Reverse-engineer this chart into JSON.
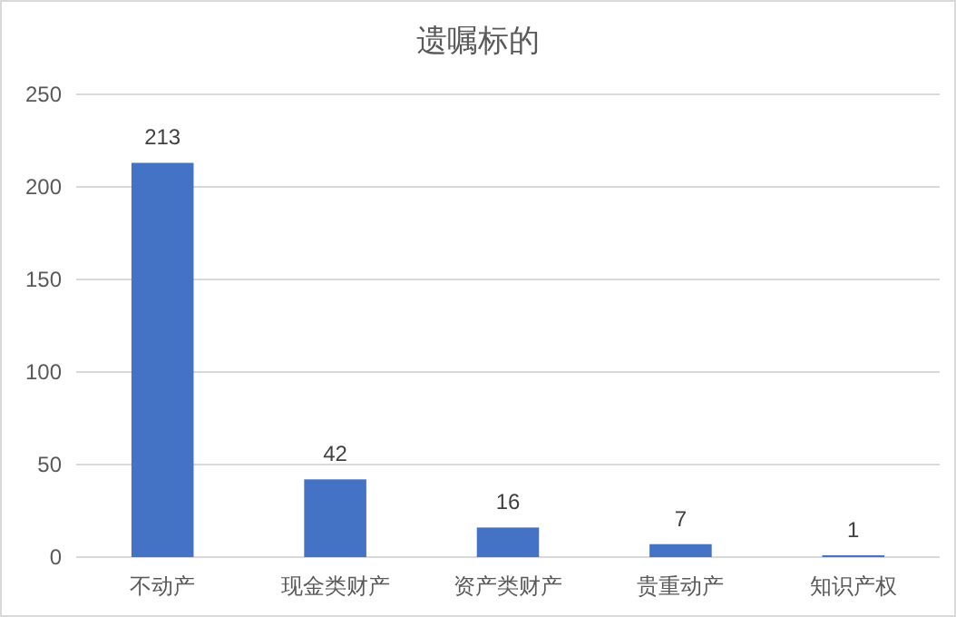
{
  "chart_data": {
    "type": "bar",
    "title": "遗嘱标的",
    "categories": [
      "不动产",
      "现金类财产",
      "资产类财产",
      "贵重动产",
      "知识产权"
    ],
    "values": [
      213,
      42,
      16,
      7,
      1
    ],
    "color": "#4472c4",
    "ylim": [
      0,
      250
    ],
    "yticks": [
      0,
      50,
      100,
      150,
      200,
      250
    ],
    "grid": "y",
    "data_labels": true
  }
}
